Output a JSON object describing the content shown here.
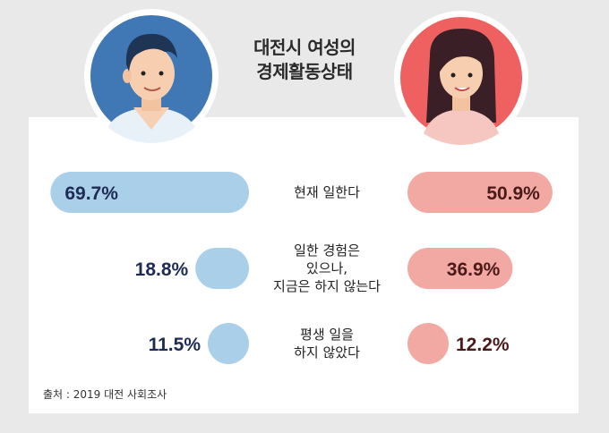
{
  "title_lines": [
    "대전시 여성의",
    "경제활동상태"
  ],
  "source": "출처 : 2019 대전 사회조사",
  "chart_data": {
    "type": "bar",
    "categories": [
      "현재 일한다",
      "일한 경험은 있으나, 지금은 하지 않는다",
      "평생 일을 하지 않았다"
    ],
    "category_lines": [
      [
        "현재 일한다"
      ],
      [
        "일한 경험은",
        "있으나,",
        "지금은 하지 않는다"
      ],
      [
        "평생 일을",
        "하지 않았다"
      ]
    ],
    "series": [
      {
        "values": [
          69.7,
          18.8,
          11.5
        ],
        "labels": [
          "69.7%",
          "18.8%",
          "11.5%"
        ],
        "color": "#a9cfe9",
        "label_color": "#1d2b55"
      },
      {
        "values": [
          50.9,
          36.9,
          12.2
        ],
        "labels": [
          "50.9%",
          "36.9%",
          "12.2%"
        ],
        "color": "#f3a9a3",
        "label_color": "#4a1a1a"
      }
    ],
    "unit": "%"
  },
  "colors": {
    "man_bg": "#3f78b5",
    "woman_bg": "#ee6160"
  },
  "icons": {
    "left_avatar": "man-avatar-icon",
    "right_avatar": "woman-avatar-icon"
  }
}
